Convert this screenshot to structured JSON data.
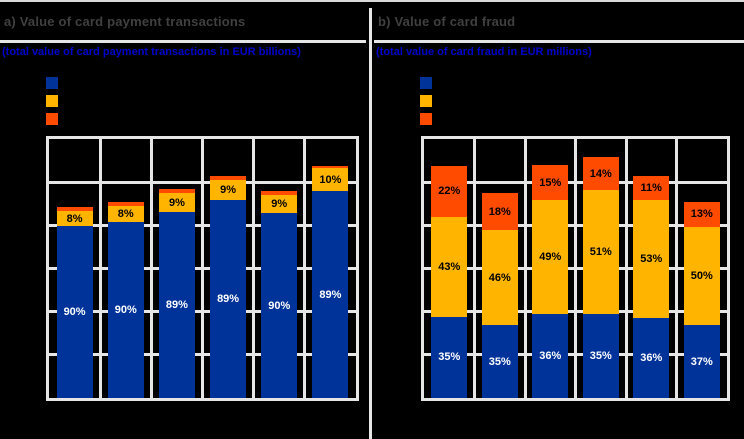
{
  "figure": {
    "background": "#000000",
    "top_border_color": "#D9D9D9",
    "divider_color": "#E6E6E6",
    "title_color": "#404040",
    "subtitle_color": "#0000CC",
    "grid_line_color": "#E6E6E6"
  },
  "chart_data": [
    {
      "type": "bar",
      "subtype": "stacked-percentage-share",
      "panel": "a",
      "title": "a) Value of card payment transactions",
      "subtitle": "(total value of card payment transactions in EUR billions)",
      "plot_background": "#000000",
      "legend_position": "top-left",
      "legend_labels_visible": false,
      "x_tick_labels_visible": false,
      "y_tick_labels_visible": false,
      "grid": {
        "rows": 6,
        "cols": 6,
        "grid_on": true
      },
      "num_bars": 6,
      "bar_total_height_frac_of_plot": [
        0.736,
        0.756,
        0.806,
        0.859,
        0.8,
        0.897
      ],
      "series": [
        {
          "name": "blue",
          "color": "#003399",
          "label_color": "#FFFFFF",
          "values_pct": [
            90,
            90,
            89,
            89,
            90,
            89
          ],
          "labels": [
            "90%",
            "90%",
            "89%",
            "89%",
            "90%",
            "89%"
          ]
        },
        {
          "name": "amber",
          "color": "#FFB400",
          "label_color": "#000000",
          "values_pct": [
            8,
            8,
            9,
            9,
            9,
            10
          ],
          "labels": [
            "8%",
            "8%",
            "9%",
            "9%",
            "9%",
            "10%"
          ]
        },
        {
          "name": "orange",
          "color": "#FF4B00",
          "label_color": "#000000",
          "values_pct": [
            2,
            2,
            2,
            2,
            2,
            1
          ],
          "labels": [
            "",
            "",
            "",
            "",
            "",
            ""
          ]
        }
      ]
    },
    {
      "type": "bar",
      "subtype": "stacked-percentage-share",
      "panel": "b",
      "title": "b) Value of card fraud",
      "subtitle": "(total value of card fraud in EUR millions)",
      "plot_background": "#000000",
      "legend_position": "top-left",
      "legend_labels_visible": false,
      "x_tick_labels_visible": false,
      "y_tick_labels_visible": false,
      "grid": {
        "rows": 6,
        "cols": 6,
        "grid_on": true
      },
      "num_bars": 6,
      "bar_total_height_frac_of_plot": [
        0.897,
        0.792,
        0.899,
        0.932,
        0.859,
        0.758
      ],
      "series": [
        {
          "name": "blue",
          "color": "#003399",
          "label_color": "#FFFFFF",
          "values_pct": [
            35,
            35,
            36,
            35,
            36,
            37
          ],
          "labels": [
            "35%",
            "35%",
            "36%",
            "35%",
            "36%",
            "37%"
          ]
        },
        {
          "name": "amber",
          "color": "#FFB400",
          "label_color": "#000000",
          "values_pct": [
            43,
            46,
            49,
            51,
            53,
            50
          ],
          "labels": [
            "43%",
            "46%",
            "49%",
            "51%",
            "53%",
            "50%"
          ]
        },
        {
          "name": "orange",
          "color": "#FF4B00",
          "label_color": "#000000",
          "values_pct": [
            22,
            18,
            15,
            14,
            11,
            13
          ],
          "labels": [
            "22%",
            "18%",
            "15%",
            "14%",
            "11%",
            "13%"
          ]
        }
      ]
    }
  ]
}
